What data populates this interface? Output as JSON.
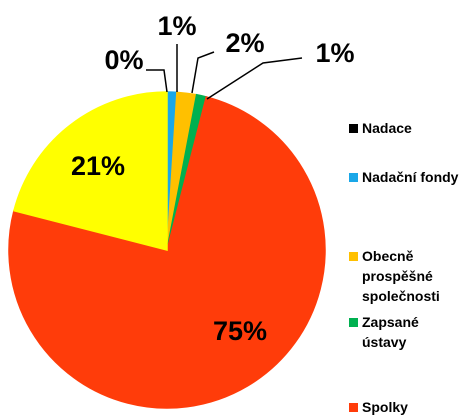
{
  "chart_data": {
    "type": "pie",
    "categories": [
      "Nadace",
      "Nadační fondy",
      "Obecně prospěšné společnosti",
      "Zapsané ústavy",
      "Spolky",
      null
    ],
    "values": [
      0,
      1,
      2,
      1,
      75,
      21
    ],
    "value_labels": [
      "0%",
      "1%",
      "2%",
      "1%",
      "75%",
      "21%"
    ],
    "colors": [
      "#000000",
      "#1aa7e8",
      "#ffc000",
      "#00b050",
      "#ff3c0a",
      "#ffff00"
    ],
    "legend": "right"
  }
}
